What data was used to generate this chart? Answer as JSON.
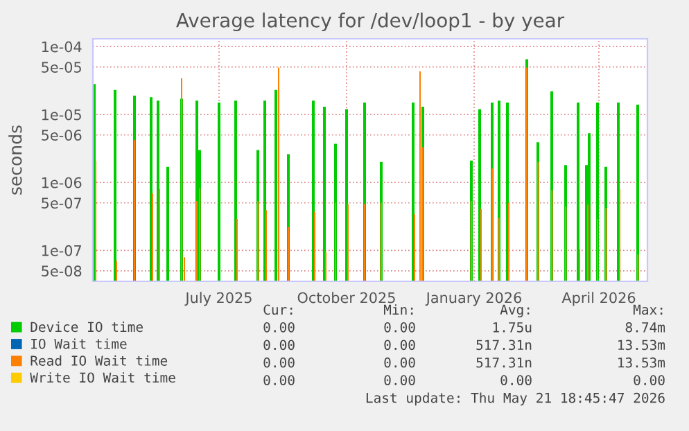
{
  "chart_data": {
    "type": "bar",
    "title": "Average latency for /dev/loop1 - by year",
    "ylabel": "seconds",
    "log": "y",
    "grid": true,
    "legend": "bottom",
    "xlim": [
      "2025-04-16",
      "2026-05-21"
    ],
    "xticks": [
      {
        "value": "2025-07-16",
        "label": "July 2025"
      },
      {
        "value": "2025-10-16",
        "label": "October 2025"
      },
      {
        "value": "2026-01-16",
        "label": "January 2026"
      },
      {
        "value": "2026-04-16",
        "label": "April 2026"
      }
    ],
    "ylim": [
      3.5e-08,
      0.00013
    ],
    "yticks": [
      {
        "value": 5e-08,
        "label": "5e-08"
      },
      {
        "value": 1e-07,
        "label": "1e-07"
      },
      {
        "value": 5e-07,
        "label": "5e-07"
      },
      {
        "value": 1e-06,
        "label": "1e-06"
      },
      {
        "value": 5e-06,
        "label": "5e-06"
      },
      {
        "value": 1e-05,
        "label": "1e-05"
      },
      {
        "value": 5e-05,
        "label": "5e-05"
      },
      {
        "value": 0.0001,
        "label": "1e-04"
      }
    ],
    "series": [
      {
        "name": "Device IO time",
        "color": "#00cc00",
        "x": [
          "2025-04-17",
          "2025-05-02",
          "2025-05-16",
          "2025-05-28",
          "2025-06-02",
          "2025-06-09",
          "2025-06-19",
          "2025-06-30",
          "2025-07-02",
          "2025-07-16",
          "2025-07-28",
          "2025-08-13",
          "2025-08-18",
          "2025-08-26",
          "2025-09-04",
          "2025-09-22",
          "2025-09-30",
          "2025-10-08",
          "2025-10-16",
          "2025-10-29",
          "2025-11-10",
          "2025-12-03",
          "2025-12-10",
          "2026-01-14",
          "2026-01-20",
          "2026-01-29",
          "2026-02-03",
          "2026-02-09",
          "2026-02-23",
          "2026-03-03",
          "2026-03-13",
          "2026-03-23",
          "2026-04-01",
          "2026-04-07",
          "2026-04-09",
          "2026-04-15",
          "2026-04-21",
          "2026-04-30",
          "2026-05-14"
        ],
        "values": [
          2.8e-05,
          2.3e-05,
          1.9e-05,
          1.8e-05,
          1.6e-05,
          1.7e-06,
          1.7e-05,
          1.6e-05,
          3e-06,
          1.5e-05,
          1.6e-05,
          3e-06,
          1.6e-05,
          2.3e-05,
          2.6e-06,
          1.6e-05,
          1.3e-05,
          3.7e-06,
          1.2e-05,
          1.5e-05,
          2e-06,
          1.5e-05,
          1.3e-05,
          2.1e-06,
          1.2e-05,
          1.5e-05,
          1.6e-05,
          1.5e-05,
          6.5e-05,
          3.9e-06,
          2.2e-05,
          1.8e-06,
          1.5e-05,
          1.8e-06,
          5.3e-06,
          1.5e-05,
          1.7e-06,
          1.5e-05,
          1.4e-05
        ]
      },
      {
        "name": "IO Wait time",
        "color": "#0066b3"
      },
      {
        "name": "Read IO Wait time",
        "color": "#ff8000",
        "x": [
          "2025-04-18",
          "2025-05-03",
          "2025-05-16",
          "2025-05-29",
          "2025-06-03",
          "2025-06-19",
          "2025-06-21",
          "2025-06-30",
          "2025-07-02",
          "2025-07-29",
          "2025-08-13",
          "2025-08-19",
          "2025-08-28",
          "2025-09-04",
          "2025-09-23",
          "2025-10-01",
          "2025-10-08",
          "2025-10-17",
          "2025-10-29",
          "2025-11-10",
          "2025-12-04",
          "2025-12-08",
          "2025-12-10",
          "2026-01-14",
          "2026-01-21",
          "2026-01-29",
          "2026-02-03",
          "2026-02-10",
          "2026-02-23",
          "2026-03-03",
          "2026-03-13",
          "2026-03-23",
          "2026-04-02",
          "2026-04-08",
          "2026-04-15",
          "2026-04-21",
          "2026-05-01",
          "2026-05-14"
        ],
        "values": [
          2.1e-06,
          7e-08,
          4.2e-06,
          6.9e-07,
          8e-07,
          3.4e-05,
          7.9e-08,
          5.3e-07,
          8.2e-07,
          2.9e-07,
          5.3e-07,
          3.9e-07,
          4.9e-05,
          2.2e-07,
          3.7e-07,
          9.5e-08,
          5e-07,
          4.8e-07,
          4.8e-07,
          5e-07,
          3.4e-07,
          4.3e-05,
          3.3e-06,
          5.3e-07,
          4.1e-07,
          1.6e-06,
          3e-07,
          5e-07,
          4.9e-05,
          2e-06,
          7.7e-07,
          4.4e-07,
          1.05e-07,
          4.7e-07,
          2.9e-07,
          4.2e-07,
          8e-07,
          8.7e-08
        ]
      },
      {
        "name": "Write IO Wait time",
        "color": "#ffcc00"
      }
    ],
    "annotations": [
      "Cur:",
      "Min:",
      "Avg:",
      "Max:",
      "0.00",
      "0.00",
      "1.75u",
      "8.74m",
      "0.00",
      "0.00",
      "517.31n",
      "13.53m",
      "0.00",
      "0.00",
      "517.31n",
      "13.53m",
      "0.00",
      "0.00",
      "0.00",
      "0.00",
      "Last update: Thu May 21 18:45:47 2026"
    ]
  }
}
